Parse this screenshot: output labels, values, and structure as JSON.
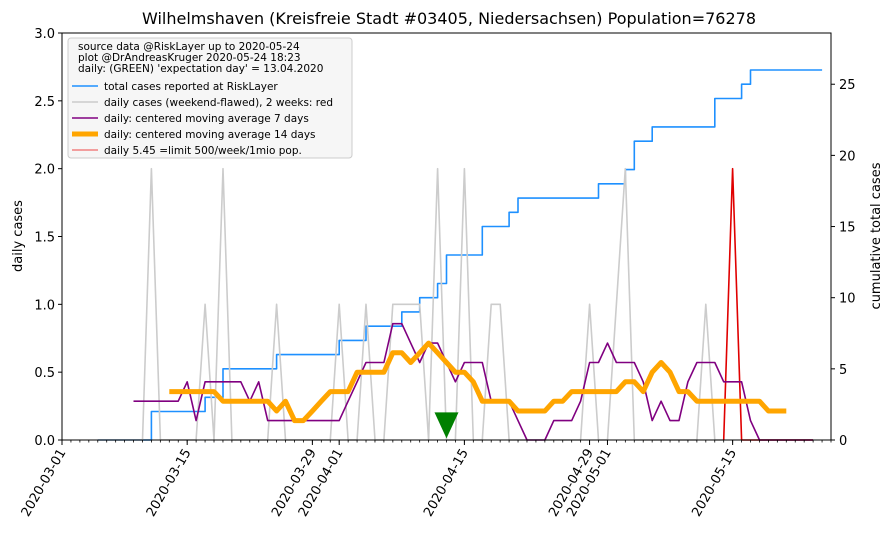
{
  "chart_data": {
    "type": "line",
    "title": "Wilhelmshaven (Kreisfreie Stadt #03405, Niedersachsen) Population=76278",
    "ylabel_left": "daily cases",
    "ylabel_right": "cumulative total cases",
    "ylabel_left_color": "#800080",
    "ylabel_right_color": "#1e90ff",
    "start_date": "2020-03-01",
    "x_tick_labels": [
      "2020-03-01",
      "2020-03-15",
      "2020-03-29",
      "2020-04-01",
      "2020-04-15",
      "2020-04-29",
      "2020-05-01",
      "2020-05-15"
    ],
    "x_tick_days": [
      0,
      14,
      28,
      31,
      45,
      59,
      61,
      75
    ],
    "ylim_left": [
      0,
      3.0
    ],
    "y_left_ticks": [
      0.0,
      0.5,
      1.0,
      1.5,
      2.0,
      2.5,
      3.0
    ],
    "y_left_tick_labels": [
      "0.0",
      "0.5",
      "1.0",
      "1.5",
      "2.0",
      "2.5",
      "3.0"
    ],
    "ylim_right": [
      0,
      28.6
    ],
    "y_right_ticks": [
      0,
      5,
      10,
      15,
      20,
      25
    ],
    "y_right_tick_labels": [
      "0",
      "5",
      "10",
      "15",
      "20",
      "25"
    ],
    "legend": {
      "placement": "top-left",
      "header_lines": [
        "source data @RiskLayer up to 2020-05-24",
        "plot @DrAndreasKruger 2020-05-24 18:23",
        "daily: (GREEN) 'expectation day' = 13.04.2020"
      ],
      "entries": [
        {
          "label": "total cases reported at RiskLayer",
          "color": "#1e90ff",
          "width": 1.6
        },
        {
          "label": "daily cases (weekend-flawed), 2 weeks: red",
          "color": "#cccccc",
          "width": 1.6
        },
        {
          "label": "daily: centered moving average 7 days",
          "color": "#800080",
          "width": 1.6
        },
        {
          "label": "daily: centered moving average 14 days",
          "color": "#ffa500",
          "width": 5
        },
        {
          "label": "daily 5.45 =limit 500/week/1mio pop.",
          "color": "#f08080",
          "width": 1.6
        }
      ]
    },
    "series": [
      {
        "name": "total cases reported at RiskLayer",
        "axis": "right",
        "color": "#1e90ff",
        "x": [
          4,
          5,
          6,
          7,
          8,
          9,
          10,
          11,
          12,
          13,
          14,
          15,
          16,
          17,
          18,
          19,
          20,
          21,
          22,
          23,
          24,
          25,
          26,
          27,
          28,
          29,
          30,
          31,
          32,
          33,
          34,
          35,
          36,
          37,
          38,
          39,
          40,
          41,
          42,
          43,
          44,
          45,
          46,
          47,
          48,
          49,
          50,
          51,
          52,
          53,
          54,
          55,
          56,
          57,
          58,
          59,
          60,
          61,
          62,
          63,
          64,
          65,
          66,
          67,
          68,
          69,
          70,
          71,
          72,
          73,
          74,
          75,
          76,
          77,
          78,
          79,
          80,
          81,
          82,
          83,
          84
        ],
        "y": [
          0,
          0,
          0,
          0,
          0,
          0,
          2,
          2,
          2,
          2,
          2,
          2,
          3,
          3,
          5,
          5,
          5,
          5,
          5,
          5,
          6,
          6,
          6,
          6,
          6,
          6,
          6,
          7,
          7,
          7,
          8,
          8,
          8,
          8,
          9,
          9,
          10,
          10,
          11,
          13,
          13,
          13,
          13,
          15,
          15,
          15,
          16,
          17,
          17,
          17,
          17,
          17,
          17,
          17,
          17,
          17,
          18,
          18,
          18,
          19,
          21,
          21,
          22,
          22,
          22,
          22,
          22,
          22,
          22,
          24,
          24,
          24,
          25,
          26,
          26,
          26,
          26,
          26,
          26,
          26,
          26
        ]
      },
      {
        "name": "daily cases (weekend-flawed), 2 weeks: red",
        "axis": "left",
        "color": "#cccccc",
        "x": [
          4,
          5,
          6,
          7,
          8,
          9,
          10,
          11,
          12,
          13,
          14,
          15,
          16,
          17,
          18,
          19,
          20,
          21,
          22,
          23,
          24,
          25,
          26,
          27,
          28,
          29,
          30,
          31,
          32,
          33,
          34,
          35,
          36,
          37,
          38,
          39,
          40,
          41,
          42,
          43,
          44,
          45,
          46,
          47,
          48,
          49,
          50,
          51,
          52,
          53,
          54,
          55,
          56,
          57,
          58,
          59,
          60,
          61,
          62,
          63,
          64,
          65,
          66,
          67,
          68,
          69,
          70,
          71,
          72,
          73,
          74
        ],
        "y": [
          0,
          0,
          0,
          0,
          0,
          0,
          2,
          0,
          0,
          0,
          0,
          0,
          1,
          0,
          2,
          0,
          0,
          0,
          0,
          0,
          1,
          0,
          0,
          0,
          0,
          0,
          0,
          1,
          0,
          0,
          1,
          0,
          0,
          1,
          1,
          1,
          1,
          0,
          2,
          0,
          0,
          2,
          0,
          0,
          1,
          1,
          0,
          0,
          0,
          0,
          0,
          0,
          0,
          0,
          0,
          1,
          0,
          0,
          1,
          2,
          0,
          0,
          0,
          0,
          0,
          0,
          0,
          0,
          1,
          0,
          0
        ]
      },
      {
        "name": "daily cases, last 2 weeks",
        "axis": "left",
        "color": "#e00000",
        "x": [
          74,
          75,
          76,
          77,
          78,
          79,
          80,
          81,
          82,
          83,
          84
        ],
        "y": [
          0,
          2,
          0,
          0,
          0,
          0,
          0,
          0,
          0,
          0,
          0
        ]
      },
      {
        "name": "daily: centered moving average 7 days",
        "axis": "left",
        "color": "#800080",
        "x": [
          8,
          9,
          10,
          11,
          12,
          13,
          14,
          15,
          16,
          17,
          18,
          19,
          20,
          21,
          22,
          23,
          24,
          25,
          26,
          27,
          28,
          29,
          30,
          31,
          32,
          33,
          34,
          35,
          36,
          37,
          38,
          39,
          40,
          41,
          42,
          43,
          44,
          45,
          46,
          47,
          48,
          49,
          50,
          51,
          52,
          53,
          54,
          55,
          56,
          57,
          58,
          59,
          60,
          61,
          62,
          63,
          64,
          65,
          66,
          67,
          68,
          69,
          70,
          71,
          72,
          73,
          74,
          75,
          76,
          77,
          78,
          79,
          80,
          81,
          82,
          83,
          84
        ],
        "y": [
          0.286,
          0.286,
          0.286,
          0.286,
          0.286,
          0.286,
          0.429,
          0.143,
          0.429,
          0.429,
          0.429,
          0.429,
          0.429,
          0.286,
          0.429,
          0.143,
          0.143,
          0.143,
          0.143,
          0.143,
          0.143,
          0.143,
          0.143,
          0.143,
          0.286,
          0.429,
          0.571,
          0.571,
          0.571,
          0.857,
          0.857,
          0.714,
          0.571,
          0.714,
          0.714,
          0.571,
          0.429,
          0.571,
          0.571,
          0.571,
          0.286,
          0.286,
          0.286,
          0.143,
          0.0,
          0.0,
          0.0,
          0.143,
          0.143,
          0.143,
          0.286,
          0.571,
          0.571,
          0.714,
          0.571,
          0.571,
          0.571,
          0.429,
          0.143,
          0.286,
          0.143,
          0.143,
          0.429,
          0.571,
          0.571,
          0.571,
          0.429,
          0.429,
          0.429,
          0.143,
          0.0,
          0.0,
          0.0,
          0.0,
          0.0,
          0.0,
          0.0
        ]
      },
      {
        "name": "daily: centered moving average 14 days",
        "axis": "left",
        "color": "#ffa500",
        "x": [
          12,
          13,
          14,
          15,
          16,
          17,
          18,
          19,
          20,
          21,
          22,
          23,
          24,
          25,
          26,
          27,
          28,
          29,
          30,
          31,
          32,
          33,
          34,
          35,
          36,
          37,
          38,
          39,
          40,
          41,
          42,
          43,
          44,
          45,
          46,
          47,
          48,
          49,
          50,
          51,
          52,
          53,
          54,
          55,
          56,
          57,
          58,
          59,
          60,
          61,
          62,
          63,
          64,
          65,
          66,
          67,
          68,
          69,
          70,
          71,
          72,
          73,
          74,
          75,
          76,
          77,
          78,
          79,
          80,
          81
        ],
        "y": [
          0.357,
          0.357,
          0.357,
          0.357,
          0.357,
          0.357,
          0.286,
          0.286,
          0.286,
          0.286,
          0.286,
          0.286,
          0.214,
          0.286,
          0.143,
          0.143,
          0.214,
          0.286,
          0.357,
          0.357,
          0.357,
          0.5,
          0.5,
          0.5,
          0.5,
          0.643,
          0.643,
          0.571,
          0.643,
          0.714,
          0.643,
          0.571,
          0.5,
          0.5,
          0.429,
          0.286,
          0.286,
          0.286,
          0.286,
          0.214,
          0.214,
          0.214,
          0.214,
          0.286,
          0.286,
          0.357,
          0.357,
          0.357,
          0.357,
          0.357,
          0.357,
          0.429,
          0.429,
          0.357,
          0.5,
          0.571,
          0.5,
          0.357,
          0.357,
          0.286,
          0.286,
          0.286,
          0.286,
          0.286,
          0.286,
          0.286,
          0.286,
          0.214,
          0.214,
          0.214
        ]
      }
    ],
    "expectation_day": {
      "x": 43,
      "y": 0.1,
      "color": "#008000"
    }
  }
}
